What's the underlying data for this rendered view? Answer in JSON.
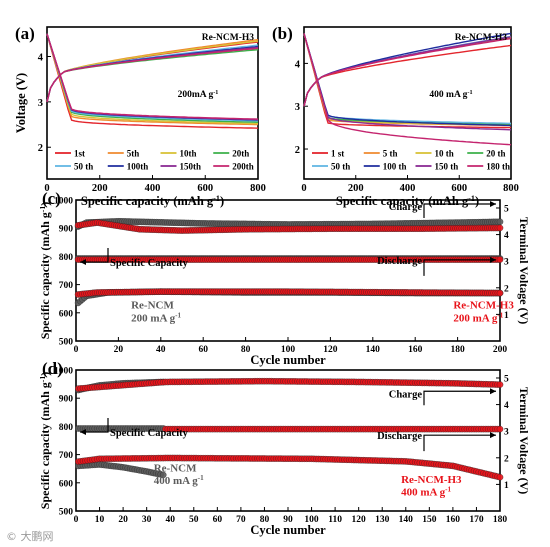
{
  "watermark": "© 大鹏网",
  "colors": {
    "axis": "#000000",
    "red": "#e8141b",
    "gray": "#5b5b5b"
  },
  "chart_data": [
    {
      "id": "a",
      "type": "line",
      "panel_label": "(a)",
      "material": "Re-NCM-H3",
      "current": "200mA g",
      "current_exp": "-1",
      "xlabel": "Specific capacity (mAh g",
      "xlabel_exp": "-1",
      "xlabel_end": ")",
      "ylabel": "Voltage (V)",
      "xlim": [
        0,
        800
      ],
      "ylim": [
        1.3,
        4.65
      ],
      "xticks": [
        0,
        200,
        400,
        600,
        800
      ],
      "yticks": [
        2,
        3,
        4
      ],
      "legend_placement": "bottom",
      "series": [
        {
          "name": "1st",
          "color": "#e3262d",
          "charge_end": 4.32,
          "discharge_plateau": 2.42,
          "discharge_drop": 2.62
        },
        {
          "name": "5th",
          "color": "#ef8a2e",
          "charge_end": 4.37,
          "discharge_plateau": 2.5,
          "discharge_drop": 2.7
        },
        {
          "name": "10th",
          "color": "#d8c238",
          "charge_end": 4.34,
          "discharge_plateau": 2.52,
          "discharge_drop": 2.75
        },
        {
          "name": "20th",
          "color": "#3cb14a",
          "charge_end": 4.15,
          "discharge_plateau": 2.55,
          "discharge_drop": 2.8
        },
        {
          "name": "50 th",
          "color": "#62b6e3",
          "charge_end": 4.25,
          "discharge_plateau": 2.58,
          "discharge_drop": 2.82
        },
        {
          "name": "100th",
          "color": "#1f2d9e",
          "charge_end": 4.22,
          "discharge_plateau": 2.6,
          "discharge_drop": 2.85
        },
        {
          "name": "150th",
          "color": "#8a2b94",
          "charge_end": 4.2,
          "discharge_plateau": 2.61,
          "discharge_drop": 2.86
        },
        {
          "name": "200th",
          "color": "#c4246e",
          "charge_end": 4.18,
          "discharge_plateau": 2.62,
          "discharge_drop": 2.87
        }
      ]
    },
    {
      "id": "b",
      "type": "line",
      "panel_label": "(b)",
      "material": "Re-NCM-H3",
      "current": "400 mA g",
      "current_exp": "-1",
      "xlabel": "Specific capacity (mAh g",
      "xlabel_exp": "-1",
      "xlabel_end": ")",
      "ylabel": "",
      "xlim": [
        0,
        800
      ],
      "ylim": [
        1.3,
        4.85
      ],
      "xticks": [
        0,
        200,
        400,
        600,
        800
      ],
      "yticks": [
        2,
        3,
        4
      ],
      "legend_placement": "bottom",
      "series": [
        {
          "name": "1 st",
          "color": "#e3262d",
          "charge_end": 4.42,
          "discharge_plateau": 2.5,
          "discharge_drop": 2.62
        },
        {
          "name": "5 th",
          "color": "#ef8a2e",
          "charge_end": 4.6,
          "discharge_plateau": 2.55,
          "discharge_drop": 2.7
        },
        {
          "name": "10 th",
          "color": "#d8c238",
          "charge_end": 4.62,
          "discharge_plateau": 2.56,
          "discharge_drop": 2.72
        },
        {
          "name": "20 th",
          "color": "#3cb14a",
          "charge_end": 4.62,
          "discharge_plateau": 2.58,
          "discharge_drop": 2.75
        },
        {
          "name": "50 th",
          "color": "#62b6e3",
          "charge_end": 4.63,
          "discharge_plateau": 2.6,
          "discharge_drop": 2.8
        },
        {
          "name": "100 th",
          "color": "#1f2d9e",
          "charge_end": 4.7,
          "discharge_plateau": 2.55,
          "discharge_drop": 2.82
        },
        {
          "name": "150 th",
          "color": "#8a2b94",
          "charge_end": 4.62,
          "discharge_plateau": 2.45,
          "discharge_drop": 2.78
        },
        {
          "name": "180 th",
          "color": "#c4246e",
          "charge_end": 4.58,
          "discharge_plateau": 2.1,
          "discharge_drop": 2.75
        }
      ]
    },
    {
      "id": "c",
      "type": "scatter",
      "panel_label": "(c)",
      "xlabel": "Cycle number",
      "ylabel": "Specific capacity (mAh g",
      "ylabel_exp": "-1",
      "ylabel_end": ")",
      "y2label": "Terminal Voltage (V)",
      "xlim": [
        0,
        200
      ],
      "ylim": [
        500,
        1000
      ],
      "y2lim": [
        0,
        5.3
      ],
      "xticks": [
        0,
        20,
        40,
        60,
        80,
        100,
        120,
        140,
        160,
        180,
        200
      ],
      "yticks": [
        500,
        600,
        700,
        800,
        900,
        1000
      ],
      "y2ticks": [
        1,
        2,
        3,
        4,
        5
      ],
      "annotations": {
        "charge": "Charge",
        "discharge": "Discharge",
        "specific_capacity": "Specific Capacity",
        "ref_material": "Re-NCM",
        "ref_current": "200 mA g",
        "ref_current_exp": "-1",
        "h3_material": "Re-NCM-H3",
        "h3_current": "200 mA g",
        "h3_current_exp": "-1"
      },
      "series": [
        {
          "name": "Re-NCM capacity",
          "color": "#5b5b5b",
          "n": 200,
          "points": [
            [
              1,
              635
            ],
            [
              5,
              660
            ],
            [
              15,
              672
            ],
            [
              40,
              675
            ],
            [
              80,
              672
            ],
            [
              120,
              672
            ],
            [
              160,
              670
            ],
            [
              200,
              670
            ]
          ]
        },
        {
          "name": "Re-NCM-H3 capacity",
          "color": "#e8141b",
          "n": 200,
          "points": [
            [
              1,
              665
            ],
            [
              10,
              672
            ],
            [
              40,
              675
            ],
            [
              100,
              675
            ],
            [
              160,
              672
            ],
            [
              200,
              670
            ]
          ]
        },
        {
          "name": "Re-NCM charge voltage",
          "color": "#5b5b5b",
          "n": 200,
          "points": [
            [
              1,
              4.3
            ],
            [
              5,
              4.45
            ],
            [
              20,
              4.5
            ],
            [
              60,
              4.42
            ],
            [
              100,
              4.38
            ],
            [
              140,
              4.4
            ],
            [
              180,
              4.45
            ],
            [
              200,
              4.48
            ]
          ]
        },
        {
          "name": "Re-NCM-H3 charge voltage",
          "color": "#e8141b",
          "n": 200,
          "points": [
            [
              1,
              4.35
            ],
            [
              10,
              4.45
            ],
            [
              30,
              4.2
            ],
            [
              50,
              4.15
            ],
            [
              80,
              4.2
            ],
            [
              120,
              4.22
            ],
            [
              160,
              4.22
            ],
            [
              200,
              4.25
            ]
          ]
        },
        {
          "name": "Re-NCM voltage 800 band",
          "color": "#5b5b5b",
          "n": 200,
          "points": [
            [
              1,
              3.1
            ],
            [
              200,
              3.1
            ]
          ]
        },
        {
          "name": "Re-NCM-H3 voltage 800 band",
          "color": "#e8141b",
          "n": 200,
          "points": [
            [
              1,
              3.06
            ],
            [
              200,
              3.06
            ]
          ]
        }
      ]
    },
    {
      "id": "d",
      "type": "scatter",
      "panel_label": "(d)",
      "xlabel": "Cycle number",
      "ylabel": "Specific capacity (mAh g",
      "ylabel_exp": "-1",
      "ylabel_end": ")",
      "y2label": "Terminal Voltage (V)",
      "xlim": [
        0,
        180
      ],
      "ylim": [
        500,
        1000
      ],
      "y2lim": [
        0,
        5.3
      ],
      "xticks": [
        0,
        10,
        20,
        30,
        40,
        50,
        60,
        70,
        80,
        90,
        100,
        110,
        120,
        130,
        140,
        150,
        160,
        170,
        180
      ],
      "yticks": [
        500,
        600,
        700,
        800,
        900,
        1000
      ],
      "y2ticks": [
        1,
        2,
        3,
        4,
        5
      ],
      "annotations": {
        "charge": "Charge",
        "discharge": "Discharge",
        "specific_capacity": "Specific Capacity",
        "ref_material": "Re-NCM",
        "ref_current": "400 mA g",
        "ref_current_exp": "-1",
        "h3_material": "Re-NCM-H3",
        "h3_current": "400 mA g",
        "h3_current_exp": "-1"
      },
      "series": [
        {
          "name": "Re-NCM capacity",
          "color": "#5b5b5b",
          "n": 37,
          "points": [
            [
              1,
              660
            ],
            [
              10,
              665
            ],
            [
              20,
              655
            ],
            [
              30,
              640
            ],
            [
              37,
              628
            ]
          ]
        },
        {
          "name": "Re-NCM-H3 capacity",
          "color": "#e8141b",
          "n": 180,
          "points": [
            [
              1,
              675
            ],
            [
              10,
              685
            ],
            [
              40,
              688
            ],
            [
              100,
              685
            ],
            [
              140,
              676
            ],
            [
              160,
              660
            ],
            [
              170,
              640
            ],
            [
              180,
              620
            ]
          ]
        },
        {
          "name": "Re-NCM charge voltage",
          "color": "#5b5b5b",
          "n": 37,
          "points": [
            [
              1,
              4.55
            ],
            [
              10,
              4.72
            ],
            [
              20,
              4.8
            ],
            [
              37,
              4.85
            ]
          ]
        },
        {
          "name": "Re-NCM-H3 charge voltage",
          "color": "#e8141b",
          "n": 180,
          "points": [
            [
              1,
              4.6
            ],
            [
              38,
              4.85
            ],
            [
              80,
              4.88
            ],
            [
              120,
              4.85
            ],
            [
              160,
              4.8
            ],
            [
              180,
              4.75
            ]
          ]
        },
        {
          "name": "Re-NCM voltage 800 band",
          "color": "#5b5b5b",
          "n": 37,
          "points": [
            [
              1,
              3.1
            ],
            [
              37,
              3.1
            ]
          ]
        },
        {
          "name": "Re-NCM-H3 voltage 800 band",
          "color": "#e8141b",
          "n": 180,
          "points": [
            [
              38,
              3.08
            ],
            [
              180,
              3.08
            ]
          ]
        }
      ]
    }
  ]
}
